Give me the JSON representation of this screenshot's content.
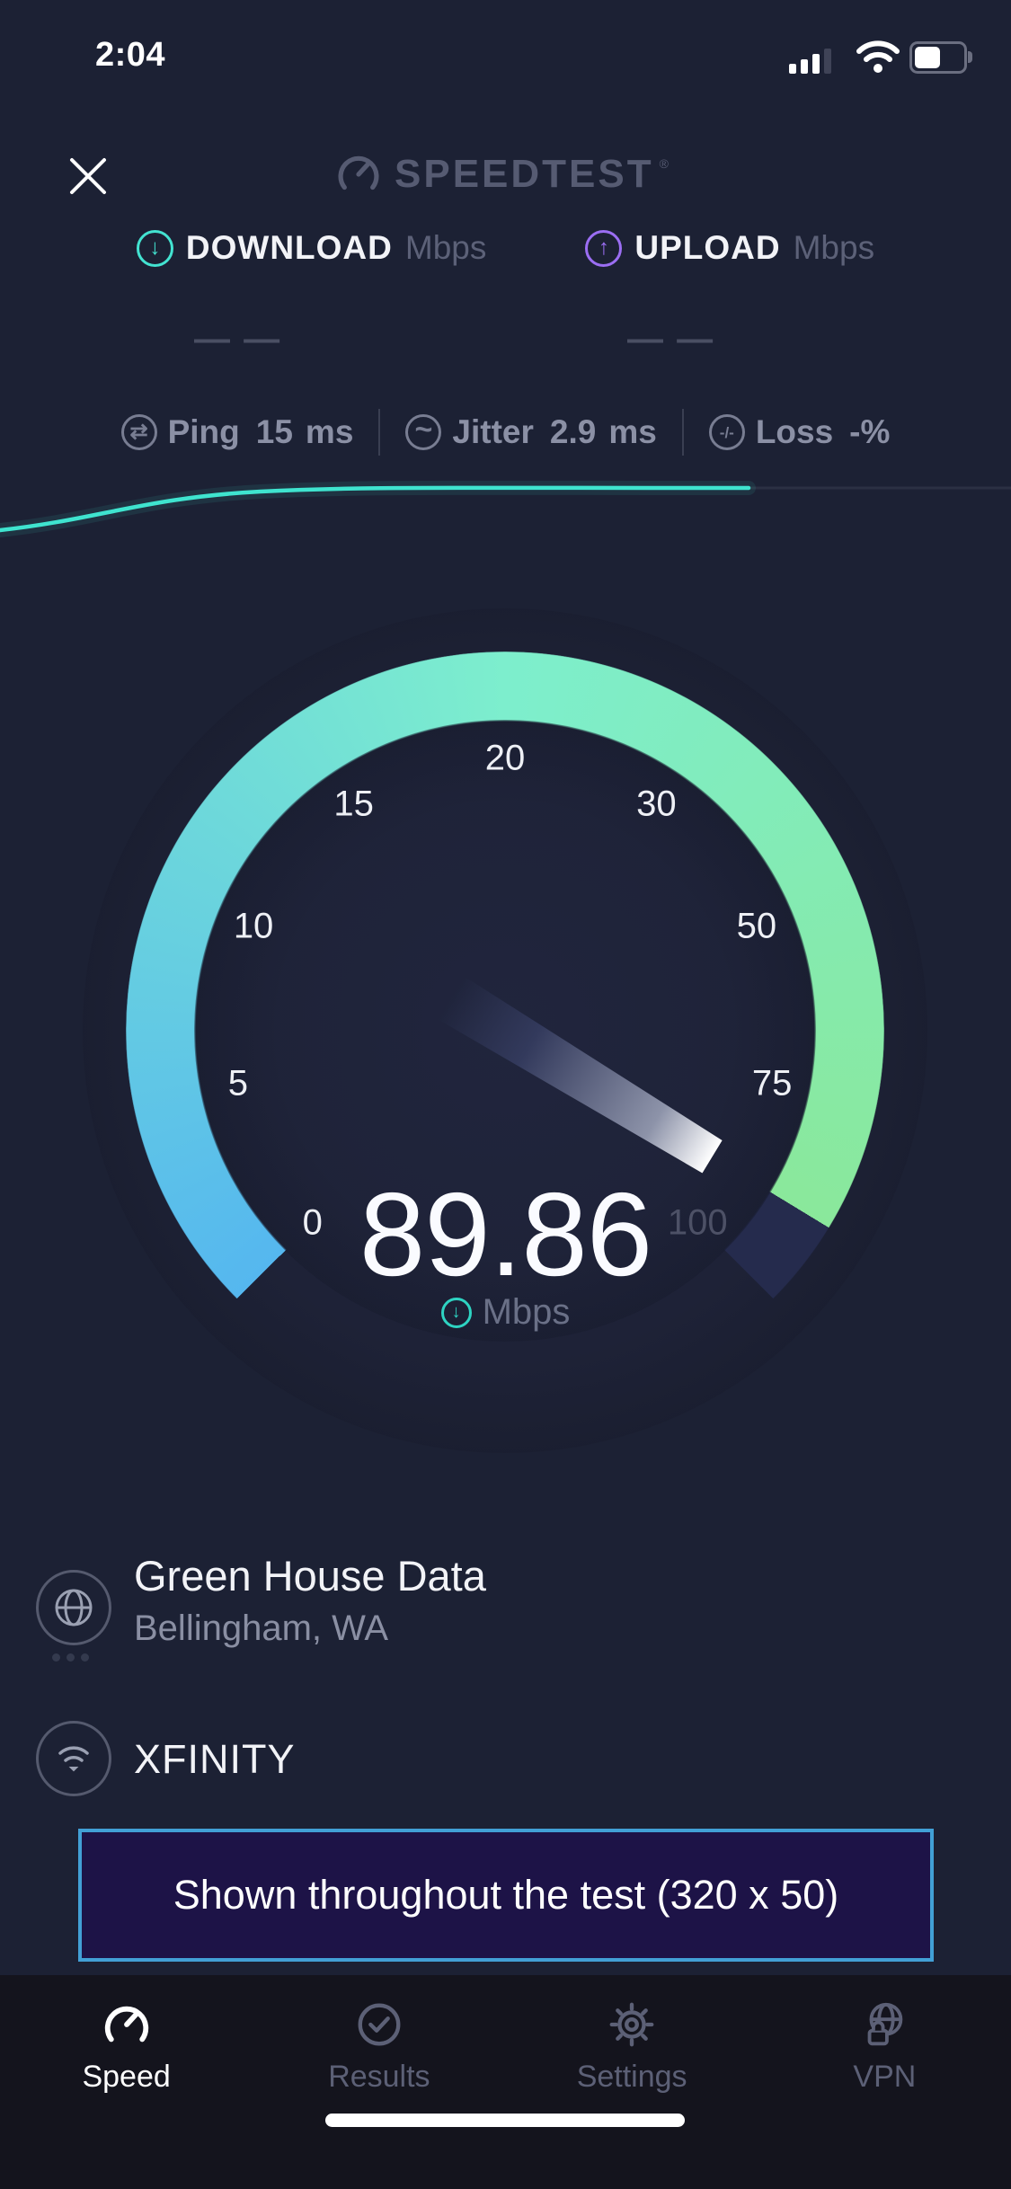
{
  "status_bar": {
    "time": "2:04"
  },
  "header": {
    "logo_text": "SPEEDTEST",
    "registered_mark": "®"
  },
  "metrics": {
    "download": {
      "label": "DOWNLOAD",
      "unit": "Mbps",
      "placeholder": "— —"
    },
    "upload": {
      "label": "UPLOAD",
      "unit": "Mbps",
      "placeholder": "— —"
    }
  },
  "latency": {
    "ping": {
      "label": "Ping",
      "value": "15",
      "unit": "ms"
    },
    "jitter": {
      "label": "Jitter",
      "value": "2.9",
      "unit": "ms"
    },
    "loss": {
      "label": "Loss",
      "value": "-%"
    }
  },
  "gauge": {
    "value": "89.86",
    "unit": "Mbps",
    "scale": [
      0,
      5,
      10,
      15,
      20,
      30,
      50,
      75,
      100
    ],
    "scale_labels": [
      {
        "text": "0"
      },
      {
        "text": "5"
      },
      {
        "text": "10"
      },
      {
        "text": "15"
      },
      {
        "text": "20"
      },
      {
        "text": "30"
      },
      {
        "text": "50"
      },
      {
        "text": "75"
      },
      {
        "text": "100",
        "dim": true
      }
    ],
    "colors": {
      "arc_start": "#55b7ef",
      "arc_mid": "#7deecd",
      "arc_end": "#8ae89b",
      "arc_remainder": "#252b4d"
    }
  },
  "server": {
    "name": "Green House Data",
    "location": "Bellingham, WA",
    "isp": "XFINITY"
  },
  "ad_banner": {
    "text": "Shown throughout the test (320 x 50)"
  },
  "tab_bar": {
    "items": [
      {
        "label": "Speed",
        "active": true
      },
      {
        "label": "Results"
      },
      {
        "label": "Settings"
      },
      {
        "label": "VPN"
      }
    ]
  },
  "icons": {
    "ping_glyph": "⇄",
    "jitter_glyph": "~",
    "loss_glyph": "-/-",
    "down_arrow": "↓",
    "up_arrow": "↑"
  },
  "accent_colors": {
    "teal": "#43e3d1",
    "purple": "#9b6ef3",
    "chart_line": "#3fe4cf"
  }
}
